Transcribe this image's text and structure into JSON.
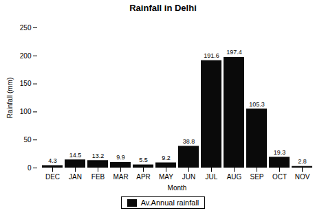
{
  "chart_data": {
    "type": "bar",
    "title": "Rainfall in Delhi",
    "xlabel": "Month",
    "ylabel": "Rainfall (mm)",
    "categories": [
      "DEC",
      "JAN",
      "FEB",
      "MAR",
      "APR",
      "MAY",
      "JUN",
      "JUL",
      "AUG",
      "SEP",
      "OCT",
      "NOV"
    ],
    "series": [
      {
        "name": "Av.Annual rainfall",
        "color": "#0a0a0a",
        "values": [
          4.3,
          14.5,
          13.2,
          9.9,
          5.5,
          9.2,
          38.8,
          191.6,
          197.4,
          105.3,
          19.3,
          2.8
        ]
      }
    ],
    "ylim": [
      0,
      250
    ],
    "yticks": [
      0,
      50,
      100,
      150,
      200,
      250
    ],
    "data_labels": true,
    "grid": false,
    "legend": "bottom"
  }
}
